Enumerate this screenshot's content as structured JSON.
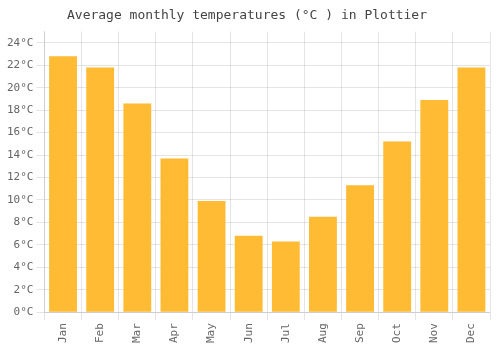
{
  "chart_data": {
    "type": "bar",
    "title": "Average monthly temperatures (°C ) in Plottier",
    "categories": [
      "Jan",
      "Feb",
      "Mar",
      "Apr",
      "May",
      "Jun",
      "Jul",
      "Aug",
      "Sep",
      "Oct",
      "Nov",
      "Dec"
    ],
    "values": [
      22.8,
      21.8,
      18.6,
      13.7,
      9.9,
      6.8,
      6.3,
      8.5,
      11.3,
      15.2,
      18.9,
      21.8
    ],
    "color": "#FFBB33",
    "ylim": [
      0,
      25
    ],
    "yticks": [
      {
        "value": 0,
        "label": "0°C"
      },
      {
        "value": 2,
        "label": "2°C"
      },
      {
        "value": 4,
        "label": "4°C"
      },
      {
        "value": 6,
        "label": "6°C"
      },
      {
        "value": 8,
        "label": "8°C"
      },
      {
        "value": 10,
        "label": "10°C"
      },
      {
        "value": 12,
        "label": "12°C"
      },
      {
        "value": 14,
        "label": "14°C"
      },
      {
        "value": 16,
        "label": "16°C"
      },
      {
        "value": 18,
        "label": "18°C"
      },
      {
        "value": 20,
        "label": "20°C"
      },
      {
        "value": 22,
        "label": "22°C"
      },
      {
        "value": 24,
        "label": "24°C"
      }
    ],
    "grid": true
  }
}
